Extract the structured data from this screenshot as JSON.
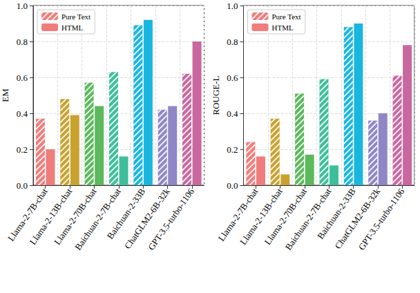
{
  "chart_data": [
    {
      "type": "bar",
      "ylabel": "EM",
      "categories": [
        "Llama-2-7B-chat",
        "Llama-2-13B-chat",
        "Llama-2-70B-chat",
        "Baichuan-2-7B-chat",
        "Baichuan-2-33B",
        "ChatGLM2-6B-32k",
        "GPT-3.5-turbo-1106"
      ],
      "colors": [
        "#f07c7c",
        "#c9a22e",
        "#5cb85c",
        "#3dbf9b",
        "#1ab6e0",
        "#8f86c6",
        "#c8689f"
      ],
      "series": [
        {
          "name": "Pure Text",
          "marker": "hatch",
          "values": [
            0.37,
            0.48,
            0.57,
            0.63,
            0.89,
            0.42,
            0.62
          ]
        },
        {
          "name": "HTML",
          "marker": "solid",
          "values": [
            0.2,
            0.39,
            0.44,
            0.16,
            0.92,
            0.44,
            0.8
          ]
        }
      ],
      "ylim": [
        0,
        1
      ],
      "yticks": [
        {
          "value": 0,
          "label": "0.0"
        },
        {
          "value": 0.2,
          "label": "0.2"
        },
        {
          "value": 0.4,
          "label": "0.4"
        },
        {
          "value": 0.6,
          "label": "0.6"
        },
        {
          "value": 0.8,
          "label": "0.8"
        },
        {
          "value": 1,
          "label": "1.0"
        }
      ],
      "grid": true,
      "legend": "upper left"
    },
    {
      "type": "bar",
      "ylabel": "ROUGE-L",
      "categories": [
        "Llama-2-7B-chat",
        "Llama-2-13B-chat",
        "Llama-2-70B-chat",
        "Baichuan-2-7B-chat",
        "Baichuan-2-33B",
        "ChatGLM2-6B-32k",
        "GPT-3.5-turbo-1106"
      ],
      "colors": [
        "#f07c7c",
        "#c9a22e",
        "#5cb85c",
        "#3dbf9b",
        "#1ab6e0",
        "#8f86c6",
        "#c8689f"
      ],
      "series": [
        {
          "name": "Pure Text",
          "marker": "hatch",
          "values": [
            0.24,
            0.37,
            0.51,
            0.59,
            0.88,
            0.36,
            0.61
          ]
        },
        {
          "name": "HTML",
          "marker": "solid",
          "values": [
            0.16,
            0.06,
            0.17,
            0.11,
            0.9,
            0.4,
            0.78
          ]
        }
      ],
      "ylim": [
        0,
        1
      ],
      "yticks": [
        {
          "value": 0,
          "label": "0.0"
        },
        {
          "value": 0.2,
          "label": "0.2"
        },
        {
          "value": 0.4,
          "label": "0.4"
        },
        {
          "value": 0.6,
          "label": "0.6"
        },
        {
          "value": 0.8,
          "label": "0.8"
        },
        {
          "value": 1,
          "label": "1.0"
        }
      ],
      "grid": true,
      "legend": "upper left"
    }
  ]
}
